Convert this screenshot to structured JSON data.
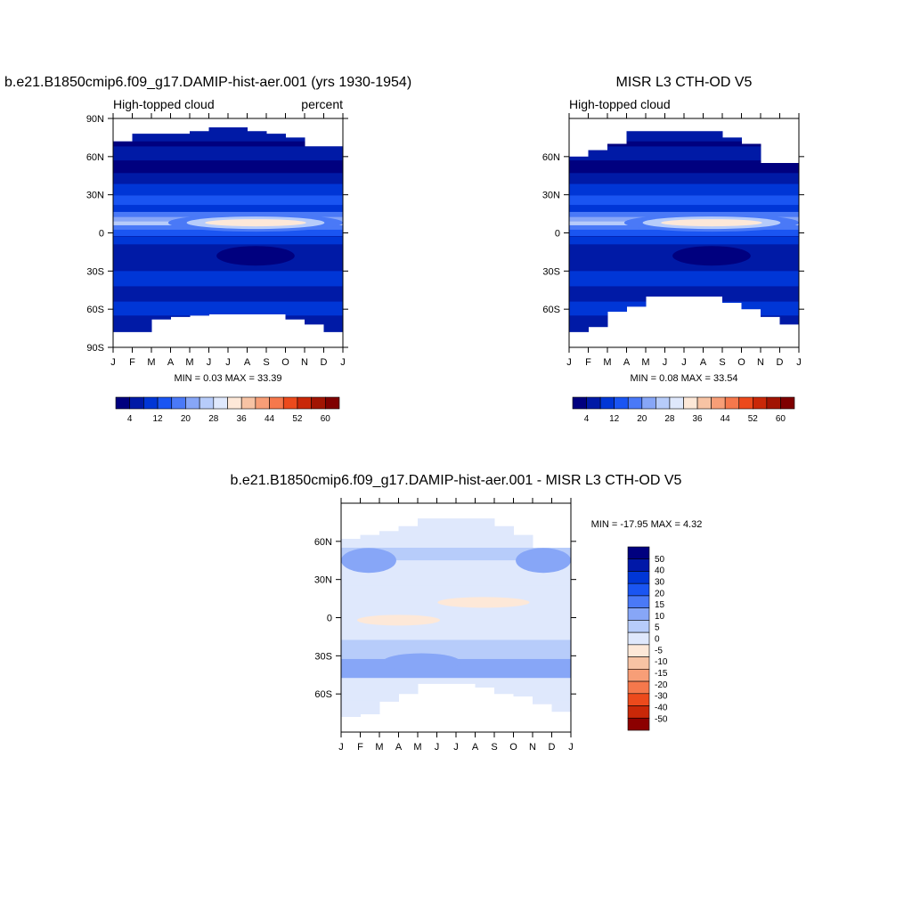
{
  "chart_data": [
    {
      "type": "heatmap",
      "title": "b.e21.B1850cmip6.f09_g17.DAMIP-hist-aer.001 (yrs 1930-1954)",
      "left_subtitle": "High-topped cloud",
      "right_subtitle": "percent",
      "stats_text": "MIN =   0.03 MAX =  33.39",
      "x_ticks": [
        "J",
        "F",
        "M",
        "A",
        "M",
        "J",
        "J",
        "A",
        "S",
        "O",
        "N",
        "D",
        "J"
      ],
      "y_ticks": [
        "90N",
        "60N",
        "30N",
        "0",
        "30S",
        "60S",
        "90S"
      ],
      "ylim": [
        -90,
        90
      ],
      "colorbar": {
        "orientation": "horizontal",
        "colors": [
          "#00007f",
          "#001aa6",
          "#0036d6",
          "#1a55f2",
          "#4a79f7",
          "#87a6f7",
          "#b7ccfa",
          "#dfe8fc",
          "#fde8d8",
          "#f7c3a4",
          "#f79e77",
          "#f5784c",
          "#ec4a1c",
          "#c92808",
          "#a11402",
          "#7f0000"
        ],
        "labels": [
          "4",
          "12",
          "20",
          "28",
          "36",
          "44",
          "52",
          "60"
        ]
      }
    },
    {
      "type": "heatmap",
      "title": "MISR L3 CTH-OD V5",
      "left_subtitle": "High-topped cloud",
      "stats_text": "MIN =   0.08 MAX =  33.54",
      "x_ticks": [
        "J",
        "F",
        "M",
        "A",
        "M",
        "J",
        "J",
        "A",
        "S",
        "O",
        "N",
        "D",
        "J"
      ],
      "y_ticks": [
        "60N",
        "30N",
        "0",
        "30S",
        "60S"
      ],
      "ylim": [
        -90,
        90
      ],
      "colorbar": {
        "orientation": "horizontal",
        "colors": [
          "#00007f",
          "#001aa6",
          "#0036d6",
          "#1a55f2",
          "#4a79f7",
          "#87a6f7",
          "#b7ccfa",
          "#dfe8fc",
          "#fde8d8",
          "#f7c3a4",
          "#f79e77",
          "#f5784c",
          "#ec4a1c",
          "#c92808",
          "#a11402",
          "#7f0000"
        ],
        "labels": [
          "4",
          "12",
          "20",
          "28",
          "36",
          "44",
          "52",
          "60"
        ]
      }
    },
    {
      "type": "heatmap",
      "title": "b.e21.B1850cmip6.f09_g17.DAMIP-hist-aer.001 - MISR L3 CTH-OD V5",
      "stats_text": "MIN = -17.95 MAX =   4.32",
      "x_ticks": [
        "J",
        "F",
        "M",
        "A",
        "M",
        "J",
        "J",
        "A",
        "S",
        "O",
        "N",
        "D",
        "J"
      ],
      "y_ticks": [
        "60N",
        "30N",
        "0",
        "30S",
        "60S"
      ],
      "ylim": [
        -90,
        90
      ],
      "colorbar": {
        "orientation": "vertical",
        "colors": [
          "#00007f",
          "#0018a8",
          "#0036d6",
          "#1a55f2",
          "#4a79f7",
          "#87a6f7",
          "#b7ccfa",
          "#dfe8fc",
          "#fde8d8",
          "#f7c3a4",
          "#f79e77",
          "#f5784c",
          "#ec4a1c",
          "#c92808",
          "#8c0000"
        ],
        "labels": [
          "50",
          "40",
          "30",
          "20",
          "15",
          "10",
          "5",
          "0",
          "-5",
          "-10",
          "-15",
          "-20",
          "-30",
          "-40",
          "-50"
        ]
      }
    }
  ]
}
